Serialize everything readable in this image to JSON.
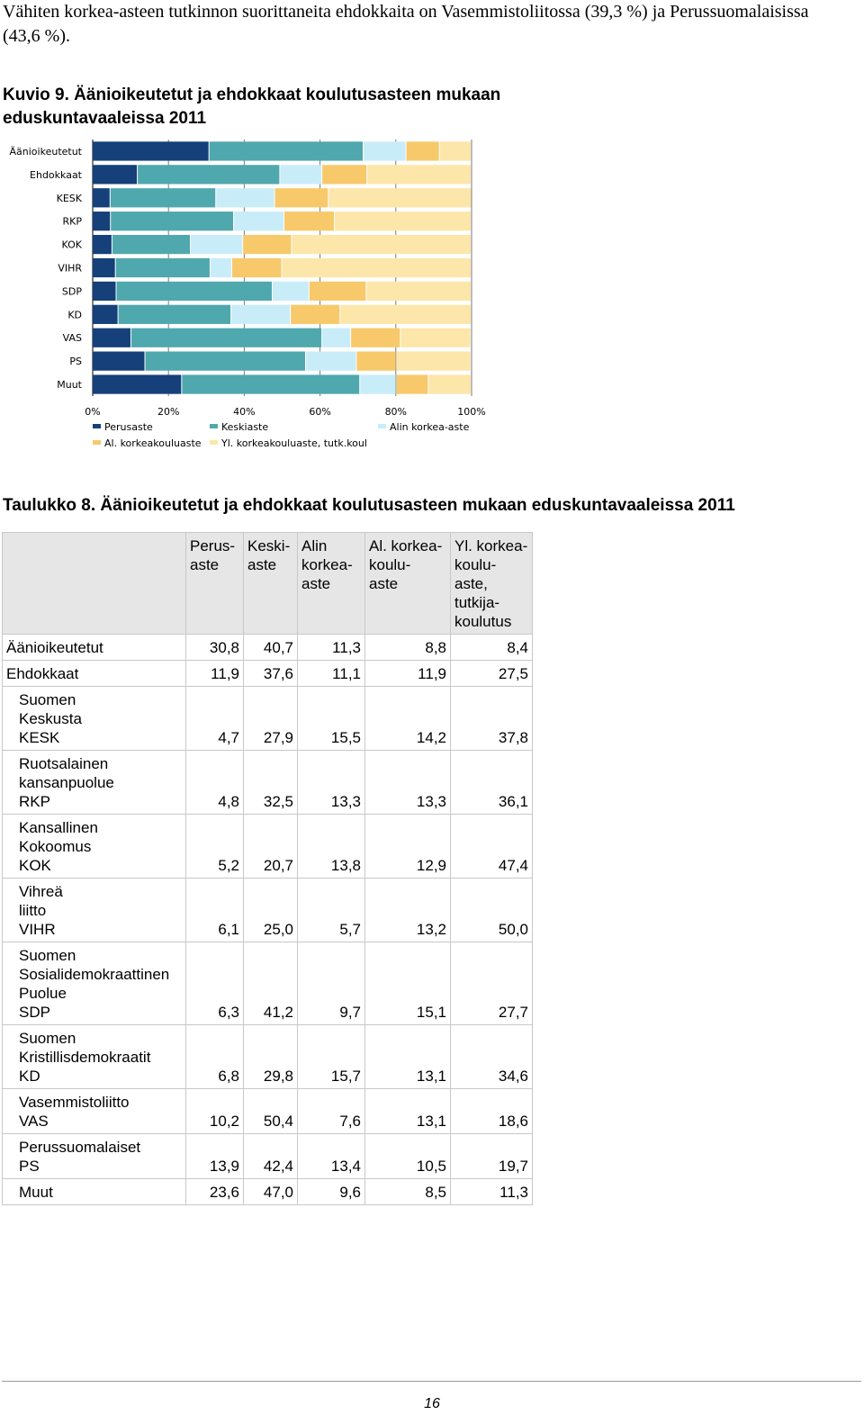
{
  "intro_text": "Vähiten korkea-asteen tutkinnon suorittaneita ehdokkaita on Vasemmistoliitossa (39,3 %) ja Perussuomalaisissa (43,6 %).",
  "figure_title": "Kuvio 9. Äänioikeutetut ja ehdokkaat koulutusasteen mukaan eduskuntavaaleissa 2011",
  "table_title": "Taulukko 8. Äänioikeutetut ja ehdokkaat koulutusasteen mukaan eduskuntavaaleissa 2011",
  "page_number": "16",
  "colors": {
    "Perusaste": "#15407a",
    "Keskiaste": "#4fa8ad",
    "Alin korkea-aste": "#c9ecf9",
    "Al. korkeakouluaste": "#f7c96a",
    "Yl. korkeakouluaste, tutk.koul": "#fde6a9",
    "grid": "#7a7a7a"
  },
  "chart_data": {
    "type": "bar",
    "orientation": "horizontal",
    "stacked": true,
    "normalized": true,
    "categories": [
      "Äänioikeutetut",
      "Ehdokkaat",
      "KESK",
      "RKP",
      "KOK",
      "VIHR",
      "SDP",
      "KD",
      "VAS",
      "PS",
      "Muut"
    ],
    "series": [
      {
        "name": "Perusaste",
        "values": [
          30.8,
          11.9,
          4.7,
          4.8,
          5.2,
          6.1,
          6.3,
          6.8,
          10.2,
          13.9,
          23.6
        ]
      },
      {
        "name": "Keskiaste",
        "values": [
          40.7,
          37.6,
          27.9,
          32.5,
          20.7,
          25.0,
          41.2,
          29.8,
          50.4,
          42.4,
          47.0
        ]
      },
      {
        "name": "Alin korkea-aste",
        "values": [
          11.3,
          11.1,
          15.5,
          13.3,
          13.8,
          5.7,
          9.7,
          15.7,
          7.6,
          13.4,
          9.6
        ]
      },
      {
        "name": "Al. korkeakouluaste",
        "values": [
          8.8,
          11.9,
          14.2,
          13.3,
          12.9,
          13.2,
          15.1,
          13.1,
          13.1,
          10.5,
          8.5
        ]
      },
      {
        "name": "Yl. korkeakouluaste, tutk.koul",
        "values": [
          8.4,
          27.5,
          37.8,
          36.1,
          47.4,
          50.0,
          27.7,
          34.6,
          18.6,
          19.7,
          11.3
        ]
      }
    ],
    "x_ticks": [
      "0%",
      "20%",
      "40%",
      "60%",
      "80%",
      "100%"
    ],
    "xlim": [
      0,
      100
    ],
    "grid": true,
    "legend_position": "bottom"
  },
  "table": {
    "headers": [
      "",
      [
        "Perus-",
        "aste"
      ],
      [
        "Keski-",
        "aste"
      ],
      [
        "Alin",
        "korkea-",
        "aste"
      ],
      [
        "Al. korkea-",
        "koulu-",
        "aste"
      ],
      [
        "Yl. korkea-",
        "koulu-",
        "aste,",
        "tutkija-",
        "koulutus"
      ]
    ],
    "rows": [
      {
        "label": [
          "Äänioikeutetut"
        ],
        "sub": false,
        "values": [
          "30,8",
          "40,7",
          "11,3",
          "8,8",
          "8,4"
        ]
      },
      {
        "label": [
          "Ehdokkaat"
        ],
        "sub": false,
        "values": [
          "11,9",
          "37,6",
          "11,1",
          "11,9",
          "27,5"
        ]
      },
      {
        "label": [
          "Suomen",
          "Keskusta",
          "KESK"
        ],
        "sub": true,
        "values": [
          "4,7",
          "27,9",
          "15,5",
          "14,2",
          "37,8"
        ]
      },
      {
        "label": [
          "Ruotsalainen",
          "kansanpuolue",
          "RKP"
        ],
        "sub": true,
        "values": [
          "4,8",
          "32,5",
          "13,3",
          "13,3",
          "36,1"
        ]
      },
      {
        "label": [
          "Kansallinen",
          "Kokoomus",
          "KOK"
        ],
        "sub": true,
        "values": [
          "5,2",
          "20,7",
          "13,8",
          "12,9",
          "47,4"
        ]
      },
      {
        "label": [
          "Vihreä",
          "liitto",
          "VIHR"
        ],
        "sub": true,
        "values": [
          "6,1",
          "25,0",
          "5,7",
          "13,2",
          "50,0"
        ]
      },
      {
        "label": [
          "Suomen",
          "Sosialidemokraattinen",
          "Puolue",
          "SDP"
        ],
        "sub": true,
        "values": [
          "6,3",
          "41,2",
          "9,7",
          "15,1",
          "27,7"
        ]
      },
      {
        "label": [
          "Suomen",
          "Kristillisdemokraatit",
          "KD"
        ],
        "sub": true,
        "values": [
          "6,8",
          "29,8",
          "15,7",
          "13,1",
          "34,6"
        ]
      },
      {
        "label": [
          "Vasemmistoliitto",
          "VAS"
        ],
        "sub": true,
        "values": [
          "10,2",
          "50,4",
          "7,6",
          "13,1",
          "18,6"
        ]
      },
      {
        "label": [
          "Perussuomalaiset",
          "PS"
        ],
        "sub": true,
        "values": [
          "13,9",
          "42,4",
          "13,4",
          "10,5",
          "19,7"
        ]
      },
      {
        "label": [
          "Muut"
        ],
        "sub": true,
        "values": [
          "23,6",
          "47,0",
          "9,6",
          "8,5",
          "11,3"
        ]
      }
    ]
  }
}
